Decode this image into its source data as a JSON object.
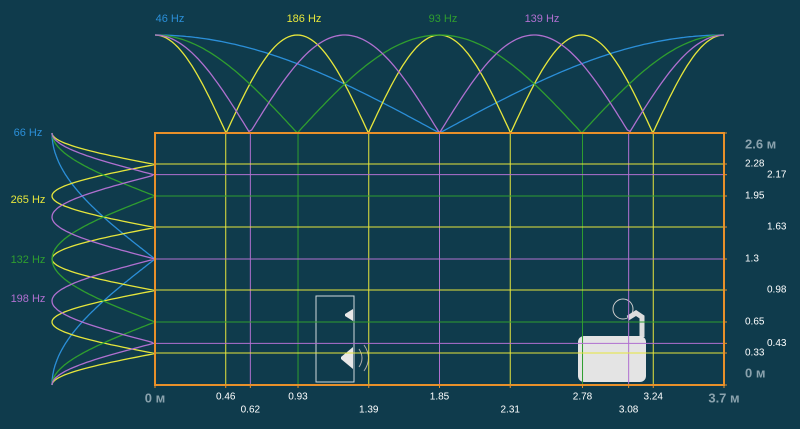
{
  "chart_data": {
    "type": "room-modes",
    "xlim": [
      0,
      3.7
    ],
    "xticks": [
      {
        "value": 0,
        "label": "0 м"
      },
      0.46,
      0.62,
      0.93,
      1.39,
      1.85,
      2.31,
      2.78,
      3.08,
      3.24,
      {
        "value": 3.7,
        "label": "3.7 м"
      }
    ],
    "ylim": [
      0,
      2.6
    ],
    "yticks": [
      {
        "value": 0,
        "label": "0 м"
      },
      0.33,
      0.43,
      0.65,
      0.98,
      1.3,
      1.63,
      1.95,
      2.17,
      2.28,
      {
        "value": 2.6,
        "label": "2.6 м"
      }
    ],
    "x_modes": [
      {
        "name": "46 Hz",
        "color": "#2b8fd8",
        "values": [
          1.85
        ]
      },
      {
        "name": "186 Hz",
        "color": "#e6e63c",
        "values": [
          0.46,
          1.39,
          2.31,
          3.24
        ]
      },
      {
        "name": "93 Hz",
        "color": "#2f9e2f",
        "values": [
          0.93,
          2.78
        ]
      },
      {
        "name": "139 Hz",
        "color": "#b070d0",
        "values": [
          0.62,
          1.85,
          3.08
        ]
      }
    ],
    "y_modes": [
      {
        "name": "66 Hz",
        "color": "#2b8fd8",
        "values": [
          1.3
        ]
      },
      {
        "name": "265 Hz",
        "color": "#e6e63c",
        "values": [
          0.33,
          0.98,
          1.63,
          2.28
        ]
      },
      {
        "name": "132 Hz",
        "color": "#2f9e2f",
        "values": [
          0.65,
          1.95
        ]
      },
      {
        "name": "198 Hz",
        "color": "#b070d0",
        "values": [
          0.43,
          1.3,
          2.17
        ]
      }
    ],
    "border_color": "#e8902a"
  }
}
